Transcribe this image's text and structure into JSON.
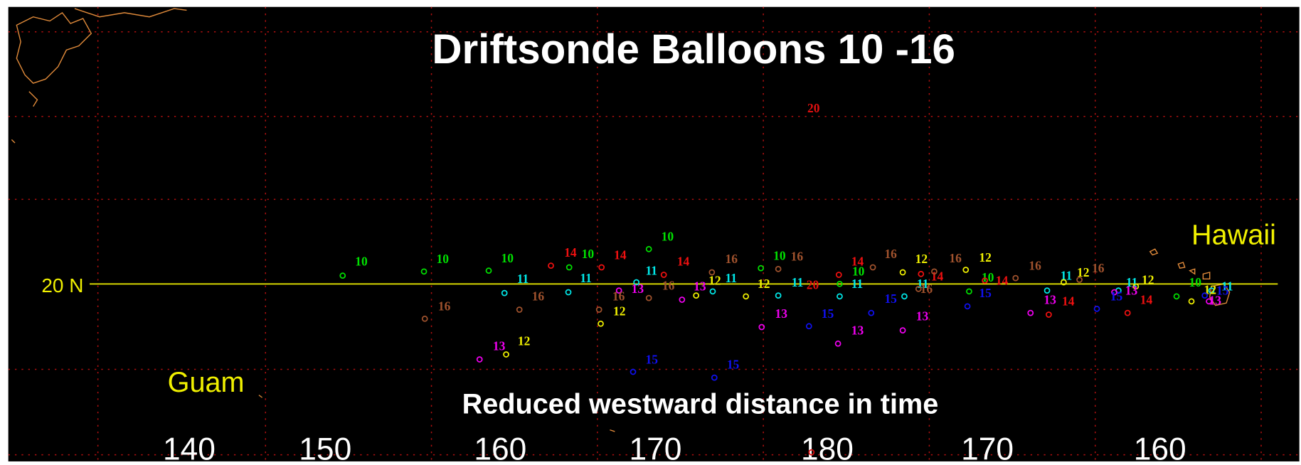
{
  "title": "Driftsonde Balloons 10 -16",
  "subtitle": "Reduced westward distance in time",
  "places": {
    "guam": "Guam",
    "hawaii": "Hawaii"
  },
  "latitude_label": "20 N",
  "x_labels": [
    "140",
    "150",
    "160",
    "170",
    "180",
    "170",
    "160"
  ],
  "colors": {
    "10": "#00e000",
    "11": "#00e8e8",
    "12": "#f0f000",
    "13": "#f000f0",
    "14": "#f01010",
    "15": "#1010f0",
    "16": "#a0522d",
    "20": "#e01010"
  },
  "markers": [
    "10",
    "10",
    "10",
    "10",
    "10",
    "10",
    "10",
    "10",
    "10",
    "11",
    "11",
    "11",
    "11",
    "11",
    "11",
    "11",
    "11",
    "11",
    "11",
    "12",
    "12",
    "12",
    "12",
    "12",
    "12",
    "12",
    "12",
    "12",
    "13",
    "13",
    "13",
    "13",
    "13",
    "13",
    "13",
    "13",
    "13",
    "14",
    "14",
    "14",
    "14",
    "14",
    "14",
    "14",
    "14",
    "15",
    "15",
    "15",
    "15",
    "15",
    "15",
    "15",
    "16",
    "16",
    "16",
    "16",
    "16",
    "16",
    "16",
    "16",
    "16",
    "16",
    "16",
    "20",
    "20"
  ]
}
